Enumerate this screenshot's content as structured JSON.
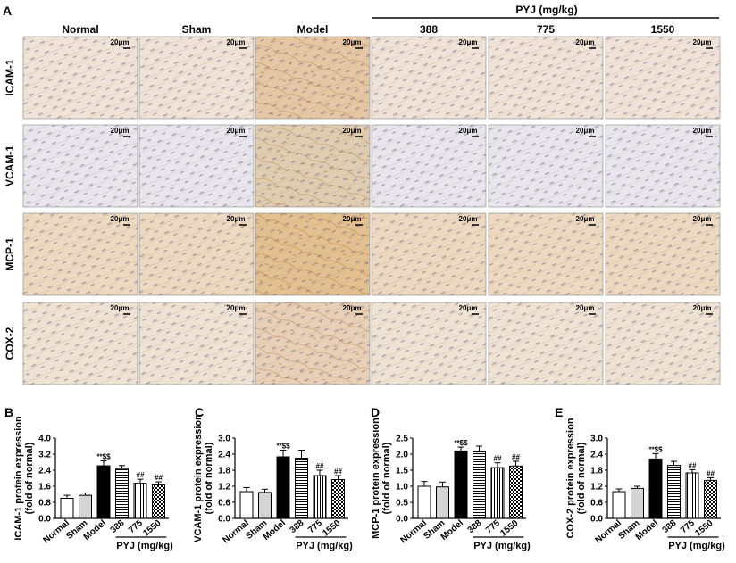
{
  "panel_a": {
    "letter": "A",
    "group_label": "PYJ (mg/kg)",
    "columns": [
      "Normal",
      "Sham",
      "Model",
      "388",
      "775",
      "1550"
    ],
    "rows": [
      "ICAM-1",
      "VCAM-1",
      "MCP-1",
      "COX-2"
    ],
    "scale_bar": "20μm",
    "row_tint": [
      "#efe2d6",
      "#e8e6ec",
      "#ecd9bf",
      "#eee2d2"
    ],
    "model_tint": [
      "#e6c7a4",
      "#e0cdb0",
      "#e3c08f",
      "#e7d0b6"
    ]
  },
  "bar_panels": {
    "group_label": "PYJ (mg/kg)",
    "categories": [
      "Normal",
      "Sham",
      "Model",
      "388",
      "775",
      "1550"
    ],
    "fills": [
      "white",
      "gray",
      "black",
      "hlines",
      "vlines",
      "checker"
    ]
  },
  "chart_data": [
    {
      "type": "bar",
      "panel": "B",
      "categories": [
        "Normal",
        "Sham",
        "Model",
        "388",
        "775",
        "1550"
      ],
      "values": [
        1.0,
        1.15,
        2.62,
        2.48,
        1.75,
        1.67
      ],
      "errors": [
        0.15,
        0.12,
        0.25,
        0.15,
        0.2,
        0.15
      ],
      "annotations": [
        "",
        "",
        "**$$",
        "",
        "##",
        "##"
      ],
      "ylabel_lines": [
        "ICAM-1 protein expression",
        "(fold of normal)"
      ],
      "ylim": [
        0,
        4.0
      ],
      "yticks": [
        "0.0",
        "0.8",
        "1.6",
        "2.4",
        "3.2",
        "4.0"
      ],
      "group_label": "PYJ (mg/kg)"
    },
    {
      "type": "bar",
      "panel": "C",
      "categories": [
        "Normal",
        "Sham",
        "Model",
        "388",
        "775",
        "1550"
      ],
      "values": [
        1.0,
        0.97,
        2.3,
        2.25,
        1.6,
        1.45
      ],
      "errors": [
        0.15,
        0.12,
        0.25,
        0.3,
        0.2,
        0.15
      ],
      "annotations": [
        "",
        "",
        "**$$",
        "",
        "##",
        "##"
      ],
      "ylabel_lines": [
        "VCAM-1 protein expression",
        "(fold of normal)"
      ],
      "ylim": [
        0,
        3.0
      ],
      "yticks": [
        "0.0",
        "0.6",
        "1.2",
        "1.8",
        "2.4",
        "3.0"
      ],
      "group_label": "PYJ (mg/kg)"
    },
    {
      "type": "bar",
      "panel": "D",
      "categories": [
        "Normal",
        "Sham",
        "Model",
        "388",
        "775",
        "1550"
      ],
      "values": [
        1.0,
        0.98,
        2.1,
        2.07,
        1.58,
        1.63
      ],
      "errors": [
        0.15,
        0.15,
        0.12,
        0.18,
        0.15,
        0.15
      ],
      "annotations": [
        "",
        "",
        "**$$",
        "",
        "##",
        "##"
      ],
      "ylabel_lines": [
        "MCP-1 protein expression",
        "(fold of normal)"
      ],
      "ylim": [
        0,
        2.5
      ],
      "yticks": [
        "0.0",
        "0.5",
        "1.0",
        "1.5",
        "2.0",
        "2.5"
      ],
      "group_label": "PYJ (mg/kg)"
    },
    {
      "type": "bar",
      "panel": "E",
      "categories": [
        "Normal",
        "Sham",
        "Model",
        "388",
        "775",
        "1550"
      ],
      "values": [
        1.0,
        1.12,
        2.22,
        1.98,
        1.7,
        1.42
      ],
      "errors": [
        0.1,
        0.08,
        0.2,
        0.15,
        0.12,
        0.1
      ],
      "annotations": [
        "",
        "",
        "**$$",
        "",
        "##",
        "##"
      ],
      "ylabel_lines": [
        "COX-2 protein expression",
        "(fold of normal)"
      ],
      "ylim": [
        0,
        3.0
      ],
      "yticks": [
        "0.0",
        "0.6",
        "1.2",
        "1.8",
        "2.4",
        "3.0"
      ],
      "group_label": "PYJ (mg/kg)"
    }
  ]
}
